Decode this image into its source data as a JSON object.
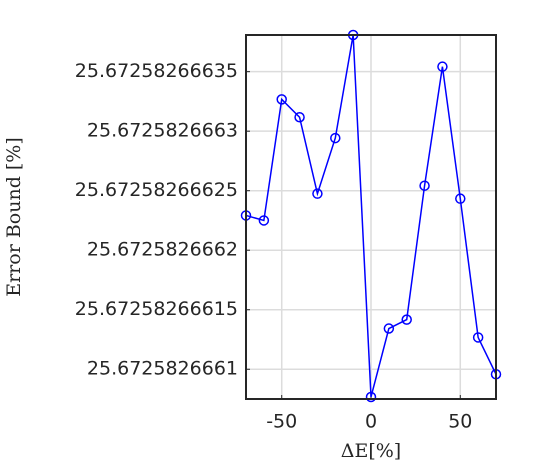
{
  "chart_data": {
    "type": "line",
    "xlabel": "ΔE[%]",
    "ylabel": "Error Bound [%]",
    "x": [
      -70,
      -60,
      -50,
      -40,
      -30,
      -20,
      -10,
      0,
      10,
      20,
      30,
      40,
      50,
      60,
      70
    ],
    "series": [
      {
        "color": "#0000ff",
        "values": [
          25.6725826662292,
          25.672582666225,
          25.6725826663267,
          25.6725826663117,
          25.6725826662475,
          25.6725826662942,
          25.6725826663808,
          25.6725826660767,
          25.6725826661342,
          25.6725826661417,
          25.6725826662542,
          25.6725826663542,
          25.6725826662433,
          25.6725826661267,
          25.6725826660958
        ]
      }
    ],
    "xlim": [
      -70,
      70
    ],
    "xticks": [
      -50,
      0,
      50
    ],
    "ylim": [
      25.672582666075,
      25.6725826663808
    ],
    "yticks": [
      25.6725826661,
      25.67258266615,
      25.6725826662,
      25.67258266625,
      25.6725826663,
      25.67258266635
    ],
    "grid": true
  }
}
